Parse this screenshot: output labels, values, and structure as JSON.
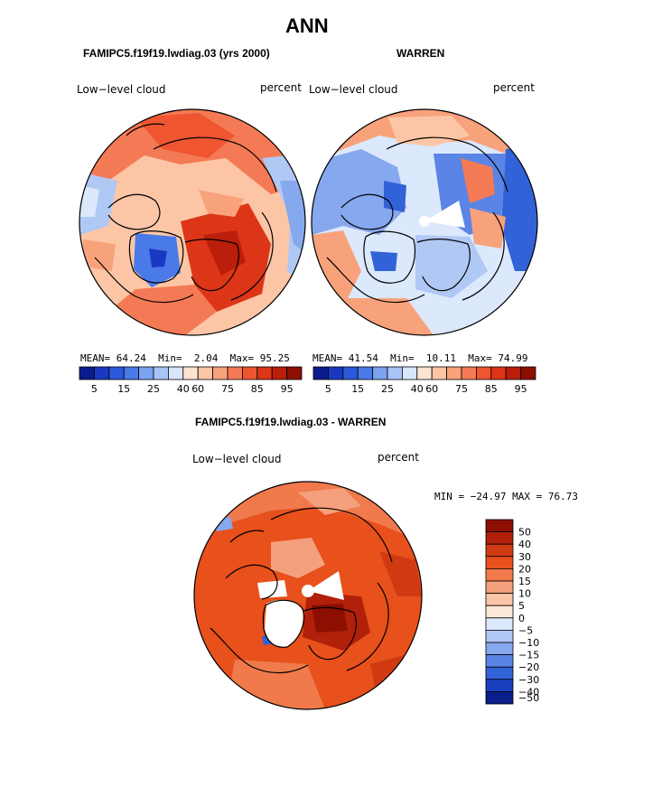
{
  "title": "ANN",
  "panels": {
    "left": {
      "case": "FAMIPC5.f19f19.lwdiag.03 (yrs 2000)",
      "field": "Low−level cloud",
      "units": "percent",
      "stats": {
        "mean_label": "MEAN=",
        "mean": "64.24",
        "min_label": "Min=",
        "min": "2.04",
        "max_label": "Max=",
        "max": "95.25"
      }
    },
    "right": {
      "case": "WARREN",
      "field": "Low−level cloud",
      "units": "percent",
      "stats": {
        "mean_label": "MEAN=",
        "mean": "41.54",
        "min_label": "Min=",
        "min": "10.11",
        "max_label": "Max=",
        "max": "74.99"
      }
    },
    "diff": {
      "case": "FAMIPC5.f19f19.lwdiag.03 - WARREN",
      "field": "Low−level cloud",
      "units": "percent",
      "stats_text": "MIN = −24.97  MAX =  76.73"
    }
  },
  "chart_data": [
    {
      "type": "heatmap",
      "projection": "north-polar-stereographic",
      "title": "FAMIPC5.f19f19.lwdiag.03 (yrs 2000)",
      "variable": "Low-level cloud",
      "units": "percent",
      "mean": 64.24,
      "min": 2.04,
      "max": 95.25,
      "colorbar": {
        "ticks": [
          "5",
          "15",
          "25",
          "40",
          "60",
          "75",
          "85",
          "95"
        ],
        "colors": [
          "#0a1c8c",
          "#1a38c0",
          "#2c58dc",
          "#4a7ae8",
          "#7aa2f0",
          "#a8c4f6",
          "#d8e6fa",
          "#fde4d0",
          "#fcc6a6",
          "#f8a27c",
          "#f47a55",
          "#ee5530",
          "#dd3518",
          "#bb1e0a",
          "#8c0f02"
        ]
      }
    },
    {
      "type": "heatmap",
      "projection": "north-polar-stereographic",
      "title": "WARREN",
      "variable": "Low-level cloud",
      "units": "percent",
      "mean": 41.54,
      "min": 10.11,
      "max": 74.99,
      "colorbar": {
        "ticks": [
          "5",
          "15",
          "25",
          "40",
          "60",
          "75",
          "85",
          "95"
        ],
        "colors": [
          "#0a1c8c",
          "#1a38c0",
          "#2c58dc",
          "#4a7ae8",
          "#7aa2f0",
          "#a8c4f6",
          "#d8e6fa",
          "#fde4d0",
          "#fcc6a6",
          "#f8a27c",
          "#f47a55",
          "#ee5530",
          "#dd3518",
          "#bb1e0a",
          "#8c0f02"
        ]
      }
    },
    {
      "type": "heatmap",
      "projection": "north-polar-stereographic",
      "title": "FAMIPC5.f19f19.lwdiag.03 - WARREN",
      "variable": "Low-level cloud",
      "units": "percent",
      "min": -24.97,
      "max": 76.73,
      "colorbar": {
        "ticks": [
          "50",
          "40",
          "30",
          "20",
          "15",
          "10",
          "5",
          "0",
          "−5",
          "−10",
          "−15",
          "−20",
          "−30",
          "−40",
          "−50"
        ],
        "colors": [
          "#8c0f02",
          "#b0200a",
          "#d03a12",
          "#e8501c",
          "#f07a4c",
          "#f5a07c",
          "#fac4a8",
          "#fde8d8",
          "#dce8fb",
          "#b0c8f4",
          "#86a8ee",
          "#5a84e6",
          "#3262d8",
          "#1a40c0",
          "#0a1e8c"
        ]
      }
    }
  ]
}
